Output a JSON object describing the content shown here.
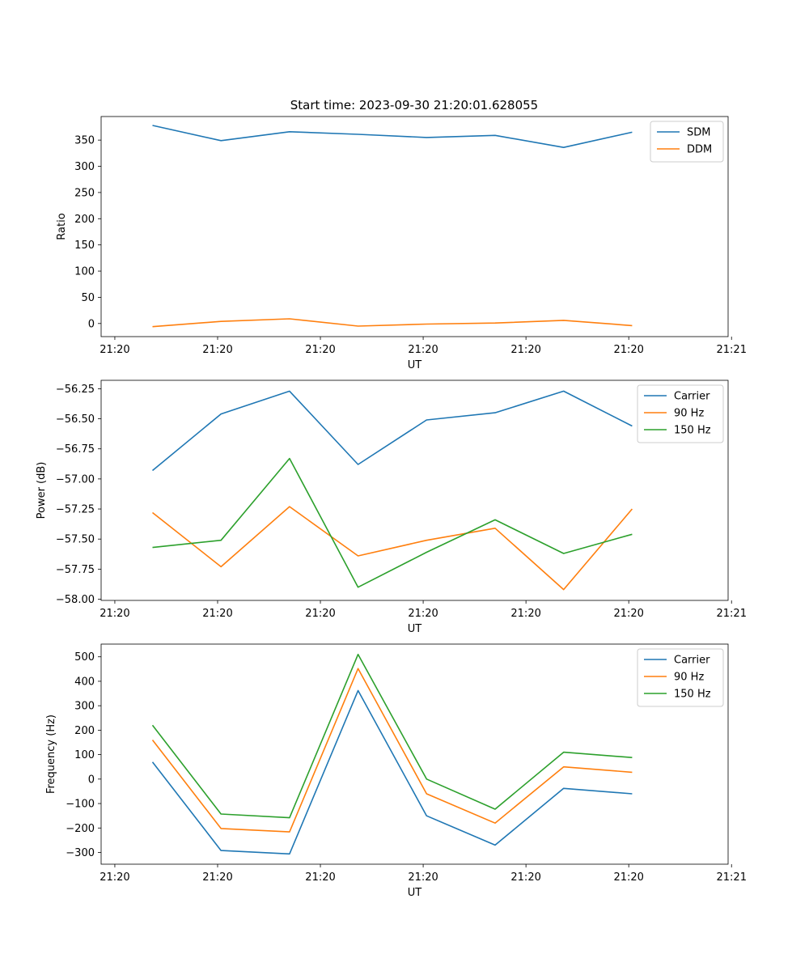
{
  "figure_title": "Start time: 2023-09-30 21:20:01.628055",
  "chart_data": [
    {
      "type": "line",
      "title": "Start time: 2023-09-30 21:20:01.628055",
      "xlabel": "UT",
      "ylabel": "Ratio",
      "x": [
        1,
        2,
        3,
        4,
        5,
        6,
        7,
        8
      ],
      "xlim": [
        0.25,
        9.4
      ],
      "xticks": [
        0.45,
        1.95,
        3.45,
        4.95,
        6.45,
        7.95,
        9.45
      ],
      "xtick_labels": [
        "21:20",
        "21:20",
        "21:20",
        "21:20",
        "21:20",
        "21:20",
        "21:21"
      ],
      "ylim": [
        -25,
        395
      ],
      "yticks": [
        0,
        50,
        100,
        150,
        200,
        250,
        300,
        350
      ],
      "ytick_labels": [
        "0",
        "50",
        "100",
        "150",
        "200",
        "250",
        "300",
        "350"
      ],
      "legend_position": "top-right",
      "series": [
        {
          "name": "SDM",
          "color": "#1f77b4",
          "values": [
            378,
            349,
            366,
            361,
            355,
            359,
            336,
            365
          ]
        },
        {
          "name": "DDM",
          "color": "#ff7f0e",
          "values": [
            -6,
            4,
            9,
            -5,
            -1,
            1,
            6,
            -4
          ]
        }
      ]
    },
    {
      "type": "line",
      "title": "",
      "xlabel": "UT",
      "ylabel": "Power (dB)",
      "x": [
        1,
        2,
        3,
        4,
        5,
        6,
        7,
        8
      ],
      "xlim": [
        0.25,
        9.4
      ],
      "xticks": [
        0.45,
        1.95,
        3.45,
        4.95,
        6.45,
        7.95,
        9.45
      ],
      "xtick_labels": [
        "21:20",
        "21:20",
        "21:20",
        "21:20",
        "21:20",
        "21:20",
        "21:21"
      ],
      "ylim": [
        -58.01,
        -56.18
      ],
      "yticks": [
        -58.0,
        -57.75,
        -57.5,
        -57.25,
        -57.0,
        -56.75,
        -56.5,
        -56.25
      ],
      "ytick_labels": [
        "−58.00",
        "−57.75",
        "−57.50",
        "−57.25",
        "−57.00",
        "−56.75",
        "−56.50",
        "−56.25"
      ],
      "legend_position": "top-right",
      "series": [
        {
          "name": "Carrier",
          "color": "#1f77b4",
          "values": [
            -56.93,
            -56.46,
            -56.27,
            -56.88,
            -56.51,
            -56.45,
            -56.27,
            -56.56
          ]
        },
        {
          "name": "90 Hz",
          "color": "#ff7f0e",
          "values": [
            -57.28,
            -57.73,
            -57.23,
            -57.64,
            -57.51,
            -57.41,
            -57.92,
            -57.25
          ]
        },
        {
          "name": "150 Hz",
          "color": "#2ca02c",
          "values": [
            -57.57,
            -57.51,
            -56.83,
            -57.9,
            -57.61,
            -57.34,
            -57.62,
            -57.46
          ]
        }
      ]
    },
    {
      "type": "line",
      "title": "",
      "xlabel": "UT",
      "ylabel": "Frequency (Hz)",
      "x": [
        1,
        2,
        3,
        4,
        5,
        6,
        7,
        8
      ],
      "xlim": [
        0.25,
        9.4
      ],
      "xticks": [
        0.45,
        1.95,
        3.45,
        4.95,
        6.45,
        7.95,
        9.45
      ],
      "xtick_labels": [
        "21:20",
        "21:20",
        "21:20",
        "21:20",
        "21:20",
        "21:20",
        "21:21"
      ],
      "ylim": [
        -348,
        552
      ],
      "yticks": [
        -300,
        -200,
        -100,
        0,
        100,
        200,
        300,
        400,
        500
      ],
      "ytick_labels": [
        "−300",
        "−200",
        "−100",
        "0",
        "100",
        "200",
        "300",
        "400",
        "500"
      ],
      "legend_position": "top-right",
      "series": [
        {
          "name": "Carrier",
          "color": "#1f77b4",
          "values": [
            70,
            -292,
            -306,
            362,
            -150,
            -270,
            -38,
            -60
          ]
        },
        {
          "name": "90 Hz",
          "color": "#ff7f0e",
          "values": [
            160,
            -202,
            -216,
            452,
            -60,
            -180,
            50,
            28
          ]
        },
        {
          "name": "150 Hz",
          "color": "#2ca02c",
          "values": [
            220,
            -143,
            -158,
            510,
            0,
            -123,
            110,
            88
          ]
        }
      ]
    }
  ]
}
